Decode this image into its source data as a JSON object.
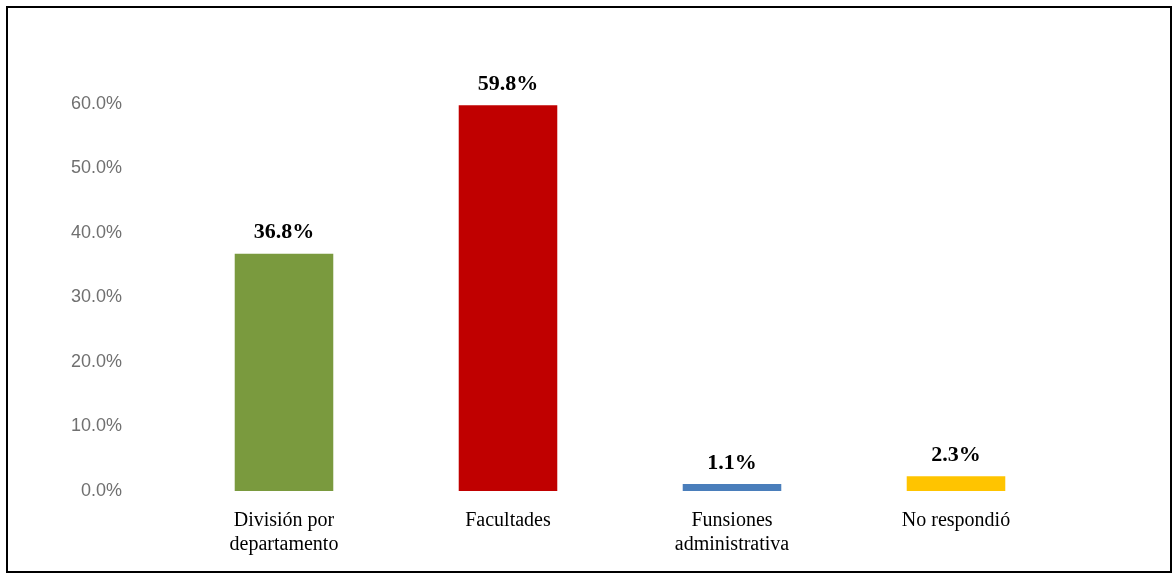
{
  "chart_data": {
    "type": "bar",
    "categories": [
      "División por departamento",
      "Facultades",
      "Funsiones administrativa",
      "No respondió"
    ],
    "values": [
      36.8,
      59.8,
      1.1,
      2.3
    ],
    "colors": [
      "#7a9a3e",
      "#c00000",
      "#4a7ebb",
      "#ffc400"
    ],
    "value_labels": [
      "36.8%",
      "59.8%",
      "1.1%",
      "2.3%"
    ],
    "ylim": [
      0,
      60
    ],
    "yticks": [
      {
        "value": 0,
        "label": "0.0%"
      },
      {
        "value": 10,
        "label": "10.0%"
      },
      {
        "value": 20,
        "label": "20.0%"
      },
      {
        "value": 30,
        "label": "30.0%"
      },
      {
        "value": 40,
        "label": "40.0%"
      },
      {
        "value": 50,
        "label": "50.0%"
      },
      {
        "value": 60,
        "label": "60.0%"
      }
    ]
  }
}
